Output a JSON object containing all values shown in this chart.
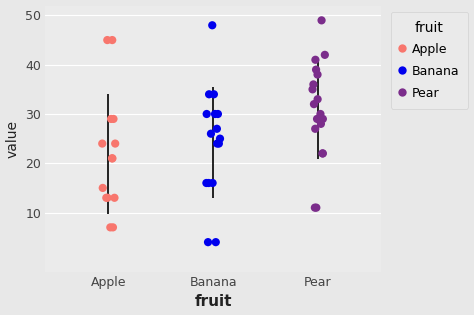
{
  "apple_values": [
    45,
    45,
    29,
    29,
    24,
    24,
    21,
    21,
    15,
    13,
    13,
    13,
    7,
    7
  ],
  "banana_values": [
    48,
    34,
    34,
    30,
    30,
    30,
    27,
    26,
    25,
    24,
    24,
    16,
    16,
    16,
    4,
    4
  ],
  "pear_values": [
    49,
    42,
    41,
    39,
    38,
    36,
    35,
    33,
    32,
    30,
    29,
    29,
    28,
    27,
    22,
    22,
    11,
    11
  ],
  "apple_color": "#F8766D",
  "banana_color": "#0000EE",
  "pear_color": "#7B2D8B",
  "background_color": "#E8E8E8",
  "panel_color": "#EBEBEB",
  "grid_color": "#FFFFFF",
  "xlabel": "fruit",
  "ylabel": "value",
  "ylim": [
    -2,
    52
  ],
  "yticks": [
    10,
    20,
    30,
    40,
    50
  ],
  "xlim": [
    0.4,
    3.6
  ],
  "categories": [
    "Apple",
    "Banana",
    "Pear"
  ],
  "legend_title": "fruit",
  "legend_labels": [
    "Apple",
    "Banana",
    "Pear"
  ],
  "legend_colors": [
    "#F8766D",
    "#0000EE",
    "#7B2D8B"
  ],
  "point_size": 35,
  "jitter_seed": 42,
  "jitter_amount": 0.07,
  "line_color": "black",
  "line_width": 1.2,
  "xlabel_fontsize": 11,
  "ylabel_fontsize": 10,
  "tick_fontsize": 9,
  "legend_fontsize": 9,
  "legend_title_fontsize": 10
}
